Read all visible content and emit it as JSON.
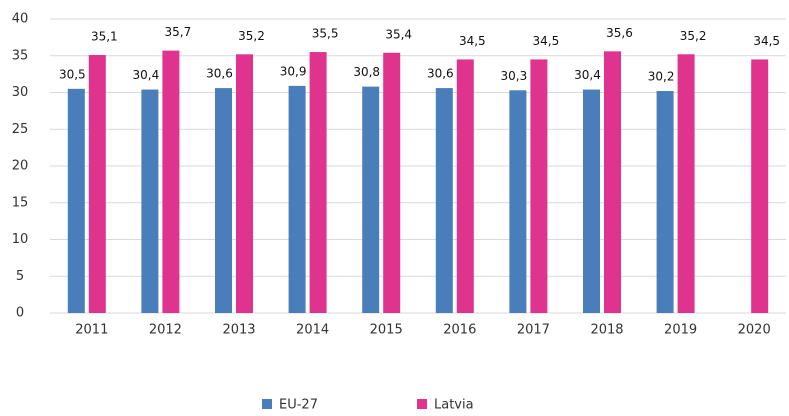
{
  "chart_data": {
    "type": "bar",
    "categories": [
      "2011",
      "2012",
      "2013",
      "2014",
      "2015",
      "2016",
      "2017",
      "2018",
      "2019",
      "2020"
    ],
    "series": [
      {
        "name": "EU-27",
        "color": "#4a7ebb",
        "values": [
          30.5,
          30.4,
          30.6,
          30.9,
          30.8,
          30.6,
          30.3,
          30.4,
          30.2,
          null
        ],
        "value_labels": [
          "30,5",
          "30,4",
          "30,6",
          "30,9",
          "30,8",
          "30,6",
          "30,3",
          "30,4",
          "30,2",
          null
        ]
      },
      {
        "name": "Latvia",
        "color": "#e0338e",
        "values": [
          35.1,
          35.7,
          35.2,
          35.5,
          35.4,
          34.5,
          34.5,
          35.6,
          35.2,
          34.5
        ],
        "value_labels": [
          "35,1",
          "35,7",
          "35,2",
          "35,5",
          "35,4",
          "34,5",
          "34,5",
          "35,6",
          "35,2",
          "34,5"
        ]
      }
    ],
    "ylim": [
      0,
      40
    ],
    "yticks": [
      0,
      5,
      10,
      15,
      20,
      25,
      30,
      35,
      40
    ],
    "grid": true,
    "legend": "bottom"
  }
}
